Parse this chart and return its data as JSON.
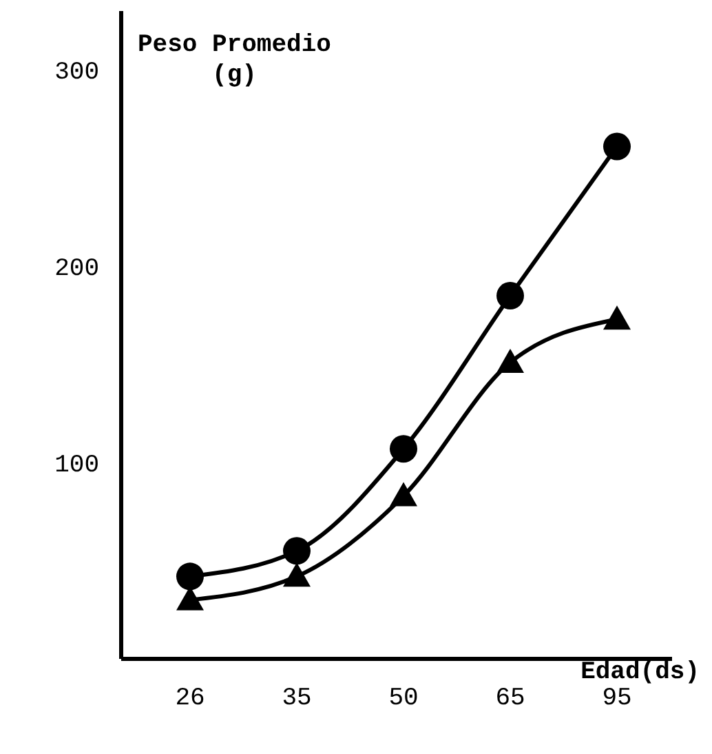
{
  "chart_data": {
    "type": "line",
    "ylabel": "Peso Promedio\n(g)",
    "xlabel": "Edad(ds)",
    "categories": [
      "26",
      "35",
      "50",
      "65",
      "95"
    ],
    "series": [
      {
        "color": "#000000",
        "marker": "circle",
        "values": [
          42,
          55,
          107,
          185,
          261
        ]
      },
      {
        "color": "#000000",
        "marker": "triangle",
        "values": [
          30,
          42,
          83,
          151,
          173
        ]
      }
    ],
    "ylim": [
      0,
      330
    ],
    "yticks": [
      100,
      200,
      300
    ],
    "grid": false,
    "legend": false,
    "line_style": "solid"
  }
}
